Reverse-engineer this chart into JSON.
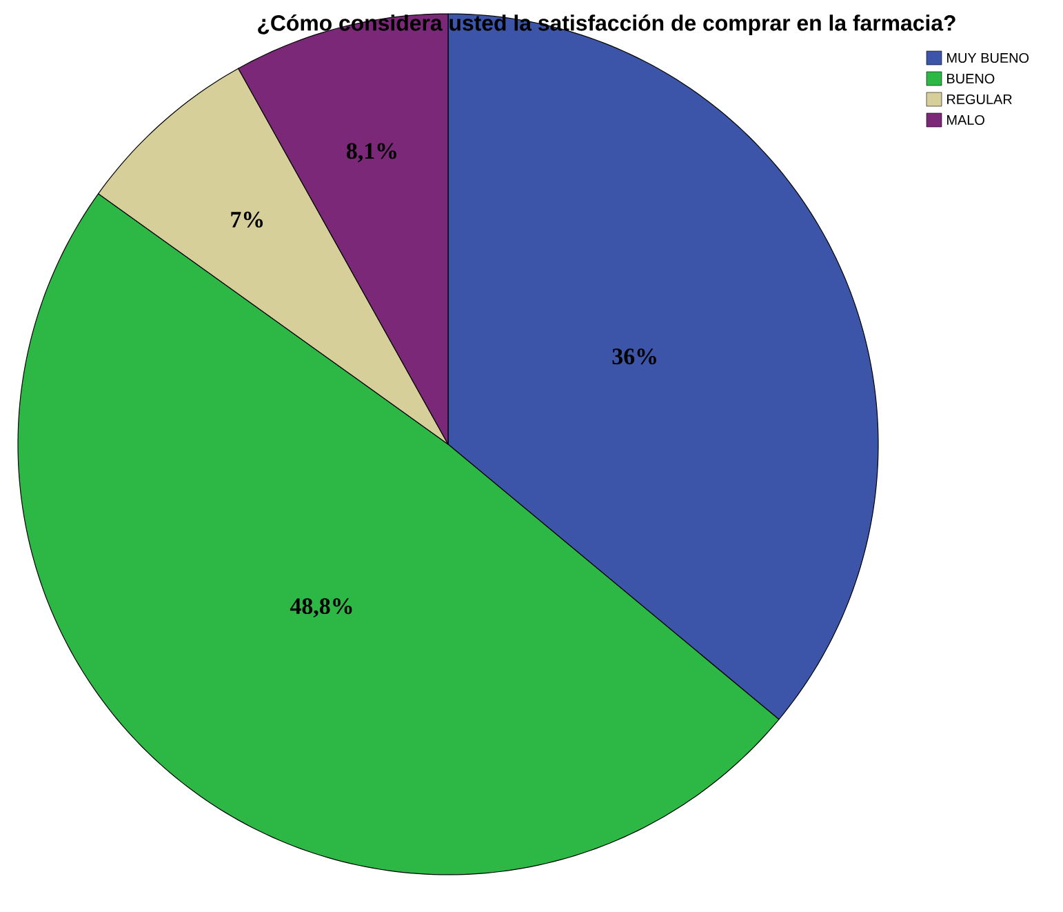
{
  "chart_data": {
    "type": "pie",
    "title": "¿Cómo considera usted la satisfacción de comprar en la farmacia?",
    "categories": [
      "MUY BUENO",
      "BUENO",
      "REGULAR",
      "MALO"
    ],
    "values": [
      36,
      48.8,
      7,
      8.1
    ],
    "value_labels": [
      "36%",
      "48,8%",
      "7%",
      "8,1%"
    ],
    "colors": [
      "#3c55a8",
      "#2db845",
      "#d6cf9a",
      "#7b2878"
    ],
    "legend": "top right"
  }
}
